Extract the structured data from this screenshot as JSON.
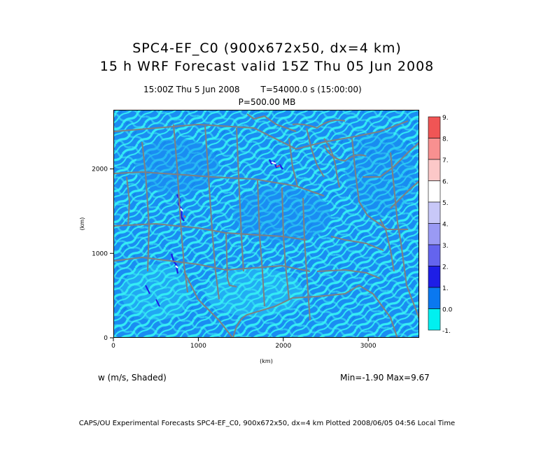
{
  "title": {
    "line1": "SPC4-EF_C0 (900x672x50, dx=4 km)",
    "line2": "15 h  WRF Forecast valid 15Z Thu 05 Jun 2008"
  },
  "info": {
    "time": "15:00Z Thu  5 Jun 2008",
    "seconds": "T=54000.0 s (15:00:00)",
    "level": "P=500.00 MB"
  },
  "chart_data": {
    "type": "heatmap",
    "xlabel": "(km)",
    "ylabel": "(km)",
    "xlim": [
      0,
      3600
    ],
    "ylim": [
      0,
      2700
    ],
    "xticks": [
      0,
      1000,
      2000,
      3000
    ],
    "yticks": [
      0,
      1000,
      2000
    ],
    "colorbar": {
      "labels": [
        "9.",
        "8.",
        "7.",
        "6.",
        "5.",
        "4.",
        "3.",
        "2.",
        "1.",
        "0.0",
        "-1."
      ],
      "colors": [
        "#f05555",
        "#f89090",
        "#fcc8c8",
        "#ffffff",
        "#c8c8f8",
        "#9a9af4",
        "#6464ee",
        "#1e1ee6",
        "#0a78f0",
        "#00f0f0"
      ]
    },
    "field": "w (m/s, Shaded)",
    "min": -1.9,
    "max": 9.67
  },
  "footer": {
    "variable": "w (m/s, Shaded)",
    "range": "Min=-1.90  Max=9.67",
    "credit": "CAPS/OU Experimental Forecasts  SPC4-EF_C0, 900x672x50, dx=4 km  Plotted 2008/06/05 04:56 Local Time"
  }
}
